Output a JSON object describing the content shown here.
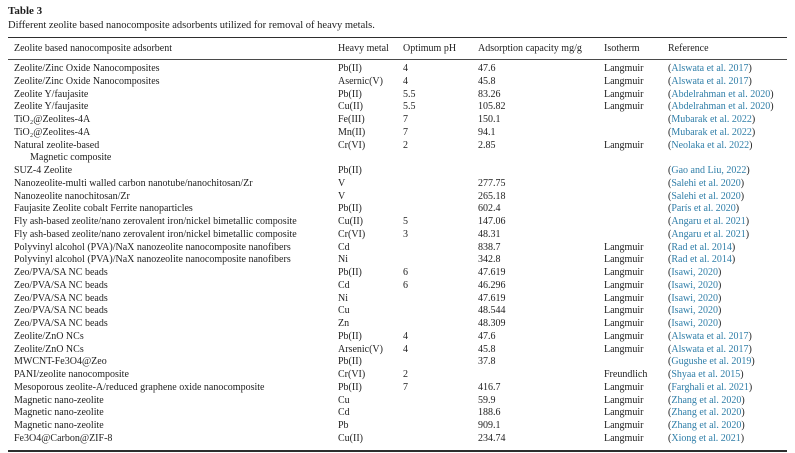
{
  "title": "Table 3",
  "caption": "Different zeolite based nanocomposite adsorbents utilized for removal of heavy metals.",
  "colors": {
    "link": "#2f7ea8",
    "text": "#1e1e1e",
    "rule": "#2e2e2e"
  },
  "table": {
    "columns": [
      "Zeolite based nanocomposite adsorbent",
      "Heavy metal",
      "Optimum pH",
      "Adsorption capacity mg/g",
      "Isotherm",
      "Reference"
    ],
    "rows": [
      {
        "name": "Zeolite/Zinc Oxide Nanocomposites",
        "metal": "Pb(II)",
        "ph": "4",
        "capacity": "47.6",
        "isotherm": "Langmuir",
        "reference": "Alswata et al. 2017"
      },
      {
        "name": "Zeolite/Zinc Oxide Nanocomposites",
        "metal": "Asernic(V)",
        "ph": "4",
        "capacity": "45.8",
        "isotherm": "Langmuir",
        "reference": "Alswata et al. 2017"
      },
      {
        "name": "Zeolite Y/faujasite",
        "metal": "Pb(II)",
        "ph": "5.5",
        "capacity": "83.26",
        "isotherm": "Langmuir",
        "reference": "Abdelrahman et al. 2020"
      },
      {
        "name": "Zeolite Y/faujasite",
        "metal": "Cu(II)",
        "ph": "5.5",
        "capacity": "105.82",
        "isotherm": "Langmuir",
        "reference": "Abdelrahman et al. 2020"
      },
      {
        "name": "TiO₂@Zeolites-4A",
        "metal": "Fe(III)",
        "ph": "7",
        "capacity": "150.1",
        "isotherm": "",
        "reference": "Mubarak et al. 2022"
      },
      {
        "name": "TiO₂@Zeolites-4A",
        "metal": "Mn(II)",
        "ph": "7",
        "capacity": "94.1",
        "isotherm": "",
        "reference": "Mubarak et al. 2022"
      },
      {
        "name": "Natural zeolite-based",
        "name2": "Magnetic composite",
        "metal": "Cr(VI)",
        "ph": "2",
        "capacity": "2.85",
        "isotherm": "Langmuir",
        "reference": "Neolaka et al. 2022"
      },
      {
        "name": "SUZ-4 Zeolite",
        "metal": "Pb(II)",
        "ph": "",
        "capacity": "",
        "isotherm": "",
        "reference": "Gao and Liu, 2022"
      },
      {
        "name": "Nanozeolite-multi walled carbon nanotube/nanochitosan/Zr",
        "metal": "V",
        "ph": "",
        "capacity": "277.75",
        "isotherm": "",
        "reference": "Salehi et al. 2020"
      },
      {
        "name": "Nanozeolite nanochitosan/Zr",
        "metal": "V",
        "ph": "",
        "capacity": "265.18",
        "isotherm": "",
        "reference": "Salehi et al. 2020"
      },
      {
        "name": "Faujasite Zeolite cobalt Ferrite nanoparticles",
        "metal": "Pb(II)",
        "ph": "",
        "capacity": "602.4",
        "isotherm": "",
        "reference": "París et al. 2020"
      },
      {
        "name": "Fly ash-based zeolite/nano zerovalent iron/nickel bimetallic composite",
        "metal": "Cu(II)",
        "ph": "5",
        "capacity": "147.06",
        "isotherm": "",
        "reference": "Angaru et al. 2021"
      },
      {
        "name": "Fly ash-based zeolite/nano zerovalent iron/nickel bimetallic composite",
        "metal": "Cr(VI)",
        "ph": "3",
        "capacity": "48.31",
        "isotherm": "",
        "reference": "Angaru et al. 2021"
      },
      {
        "name": "Polyvinyl alcohol (PVA)/NaX nanozeolite nanocomposite nanofibers",
        "metal": "Cd",
        "ph": "",
        "capacity": "838.7",
        "isotherm": "Langmuir",
        "reference": "Rad et al. 2014"
      },
      {
        "name": "Polyvinyl alcohol (PVA)/NaX nanozeolite nanocomposite nanofibers",
        "metal": "Ni",
        "ph": "",
        "capacity": "342.8",
        "isotherm": "Langmuir",
        "reference": "Rad et al. 2014"
      },
      {
        "name": "Zeo/PVA/SA NC beads",
        "metal": "Pb(II)",
        "ph": "6",
        "capacity": "47.619",
        "isotherm": "Langmuir",
        "reference": "Isawi, 2020"
      },
      {
        "name": "Zeo/PVA/SA NC beads",
        "metal": "Cd",
        "ph": "6",
        "capacity": "46.296",
        "isotherm": "Langmuir",
        "reference": "Isawi, 2020"
      },
      {
        "name": "Zeo/PVA/SA NC beads",
        "metal": "Ni",
        "ph": "",
        "capacity": "47.619",
        "isotherm": "Langmuir",
        "reference": "Isawi, 2020"
      },
      {
        "name": "Zeo/PVA/SA NC beads",
        "metal": "Cu",
        "ph": "",
        "capacity": "48.544",
        "isotherm": "Langmuir",
        "reference": "Isawi, 2020"
      },
      {
        "name": "Zeo/PVA/SA NC beads",
        "metal": "Zn",
        "ph": "",
        "capacity": "48.309",
        "isotherm": "Langmuir",
        "reference": "Isawi, 2020"
      },
      {
        "name": "Zeolite/ZnO NCs",
        "metal": "Pb(II)",
        "ph": "4",
        "capacity": "47.6",
        "isotherm": "Langmuir",
        "reference": "Alswata et al. 2017"
      },
      {
        "name": "Zeolite/ZnO NCs",
        "metal": "Arsenic(V)",
        "ph": "4",
        "capacity": "45.8",
        "isotherm": "Langmuir",
        "reference": "Alswata et al. 2017"
      },
      {
        "name": "MWCNT-Fe3O4@Zeo",
        "metal": "Pb(II)",
        "ph": "",
        "capacity": "37.8",
        "isotherm": "",
        "reference": "Gugushe et al. 2019"
      },
      {
        "name": "PANI/zeolite nanocomposite",
        "metal": "Cr(VI)",
        "ph": "2",
        "capacity": "",
        "isotherm": "Freundlich",
        "reference": "Shyaa et al. 2015"
      },
      {
        "name": "Mesoporous zeolite-A/reduced graphene oxide nanocomposite",
        "metal": "Pb(II)",
        "ph": "7",
        "capacity": "416.7",
        "isotherm": "Langmuir",
        "reference": "Farghali et al. 2021"
      },
      {
        "name": "Magnetic nano-zeolite",
        "metal": "Cu",
        "ph": "",
        "capacity": "59.9",
        "isotherm": "Langmuir",
        "reference": "Zhang et al. 2020"
      },
      {
        "name": "Magnetic nano-zeolite",
        "metal": "Cd",
        "ph": "",
        "capacity": "188.6",
        "isotherm": "Langmuir",
        "reference": "Zhang et al. 2020"
      },
      {
        "name": "Magnetic nano-zeolite",
        "metal": "Pb",
        "ph": "",
        "capacity": "909.1",
        "isotherm": "Langmuir",
        "reference": "Zhang et al. 2020"
      },
      {
        "name": "Fe3O4@Carbon@ZIF-8",
        "metal": "Cu(II)",
        "ph": "",
        "capacity": "234.74",
        "isotherm": "Langmuir",
        "reference": "Xiong et al. 2021"
      }
    ]
  }
}
